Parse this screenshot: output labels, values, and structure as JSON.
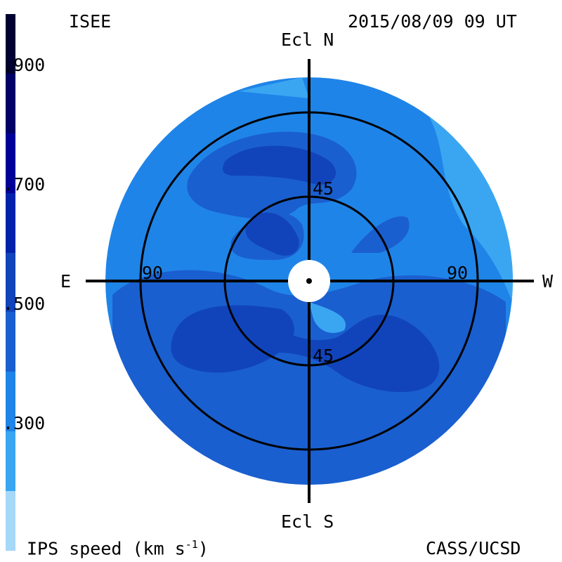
{
  "header": {
    "source": "ISEE",
    "timestamp": "2015/08/09 09 UT"
  },
  "footer": {
    "quantity_label": "IPS speed (km s",
    "quantity_exp": "-1",
    "quantity_close": ")",
    "credit": "CASS/UCSD"
  },
  "axes": {
    "north": "Ecl N",
    "south": "Ecl S",
    "east": "E",
    "west": "W",
    "inner_ring_top": "45",
    "inner_ring_bottom": "45",
    "outer_ring_left": "90",
    "outer_ring_right": "90"
  },
  "colorbar": {
    "ticks": [
      ".900",
      ".700",
      ".500",
      ".300"
    ],
    "levels": [
      {
        "min": 1000,
        "max": 900,
        "color": "#000033"
      },
      {
        "min": 900,
        "max": 800,
        "color": "#000066"
      },
      {
        "min": 800,
        "max": 700,
        "color": "#000099"
      },
      {
        "min": 700,
        "max": 600,
        "color": "#0022aa"
      },
      {
        "min": 600,
        "max": 500,
        "color": "#1144bb"
      },
      {
        "min": 500,
        "max": 400,
        "color": "#1a5fcf"
      },
      {
        "min": 400,
        "max": 300,
        "color": "#1f84e8"
      },
      {
        "min": 300,
        "max": 200,
        "color": "#3aa6f2"
      },
      {
        "min": 200,
        "max": 100,
        "color": "#a6d8f8"
      }
    ]
  },
  "colors": {
    "background_speed": "#1f84e8",
    "mid_speed": "#1a5fcf",
    "high_speed": "#1144bb",
    "low_speed": "#3aa6f2",
    "occulter": "#ffffff",
    "lines": "#000000"
  }
}
